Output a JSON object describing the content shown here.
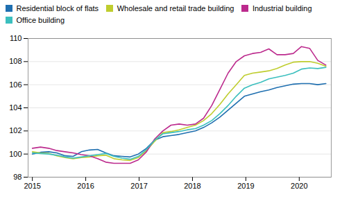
{
  "chart_data": {
    "type": "line",
    "x": [
      2015,
      2015.152778,
      2015.305556,
      2015.458333,
      2015.611111,
      2015.763889,
      2015.916667,
      2016.069444,
      2016.222222,
      2016.375,
      2016.527778,
      2016.680556,
      2016.833333,
      2016.986111,
      2017.138889,
      2017.291667,
      2017.444444,
      2017.597222,
      2017.75,
      2017.902778,
      2018.055556,
      2018.208333,
      2018.361111,
      2018.513889,
      2018.666667,
      2018.819444,
      2018.972222,
      2019.125,
      2019.277778,
      2019.430556,
      2019.583333,
      2019.736111,
      2019.888889,
      2020.041667,
      2020.194444,
      2020.347222,
      2020.5
    ],
    "series": [
      {
        "name": "Residential block of flats",
        "color": "#1f6fb0",
        "values": [
          100.0,
          100.15,
          100.2,
          100.1,
          99.85,
          99.8,
          100.2,
          100.35,
          100.4,
          100.1,
          99.85,
          99.8,
          99.75,
          100.0,
          100.5,
          101.2,
          101.5,
          101.6,
          101.7,
          101.85,
          102.0,
          102.3,
          102.7,
          103.2,
          103.8,
          104.4,
          105.0,
          105.2,
          105.4,
          105.55,
          105.75,
          105.9,
          106.05,
          106.1,
          106.1,
          106.0,
          106.1
        ]
      },
      {
        "name": "Wholesale and retail trade building",
        "color": "#bfcd2e",
        "values": [
          100.2,
          100.1,
          100.05,
          99.85,
          99.7,
          99.6,
          99.7,
          99.75,
          99.85,
          99.9,
          99.6,
          99.5,
          99.45,
          99.7,
          100.3,
          101.1,
          101.85,
          101.95,
          102.1,
          102.3,
          102.5,
          102.9,
          103.5,
          104.3,
          105.2,
          106.0,
          106.8,
          107.0,
          107.1,
          107.2,
          107.4,
          107.7,
          107.95,
          108.0,
          108.0,
          107.85,
          107.6
        ]
      },
      {
        "name": "Industrial building",
        "color": "#bc2a8d",
        "values": [
          100.5,
          100.6,
          100.5,
          100.3,
          100.2,
          100.1,
          99.95,
          99.85,
          99.6,
          99.3,
          99.2,
          99.2,
          99.2,
          99.5,
          100.2,
          101.3,
          102.0,
          102.5,
          102.6,
          102.5,
          102.6,
          103.1,
          104.2,
          105.6,
          107.0,
          108.0,
          108.5,
          108.7,
          108.8,
          109.1,
          108.6,
          108.6,
          108.7,
          109.3,
          109.15,
          108.1,
          107.7
        ]
      },
      {
        "name": "Office building",
        "color": "#3bbfbe",
        "values": [
          100.1,
          100.05,
          100.0,
          99.9,
          99.75,
          99.65,
          99.75,
          99.85,
          99.95,
          100.05,
          99.8,
          99.65,
          99.55,
          99.8,
          100.4,
          101.2,
          101.75,
          101.85,
          101.95,
          102.1,
          102.2,
          102.5,
          102.9,
          103.5,
          104.2,
          105.0,
          105.7,
          106.0,
          106.2,
          106.5,
          106.65,
          106.8,
          107.0,
          107.35,
          107.45,
          107.4,
          107.5
        ]
      }
    ],
    "xlim": [
      2014.92,
      2020.6
    ],
    "xticks": [
      2015,
      2016,
      2017,
      2018,
      2019,
      2020
    ],
    "ylim": [
      98,
      110
    ],
    "yticks": [
      98,
      100,
      102,
      104,
      106,
      108,
      110
    ],
    "grid": true,
    "legend": "upper left"
  }
}
